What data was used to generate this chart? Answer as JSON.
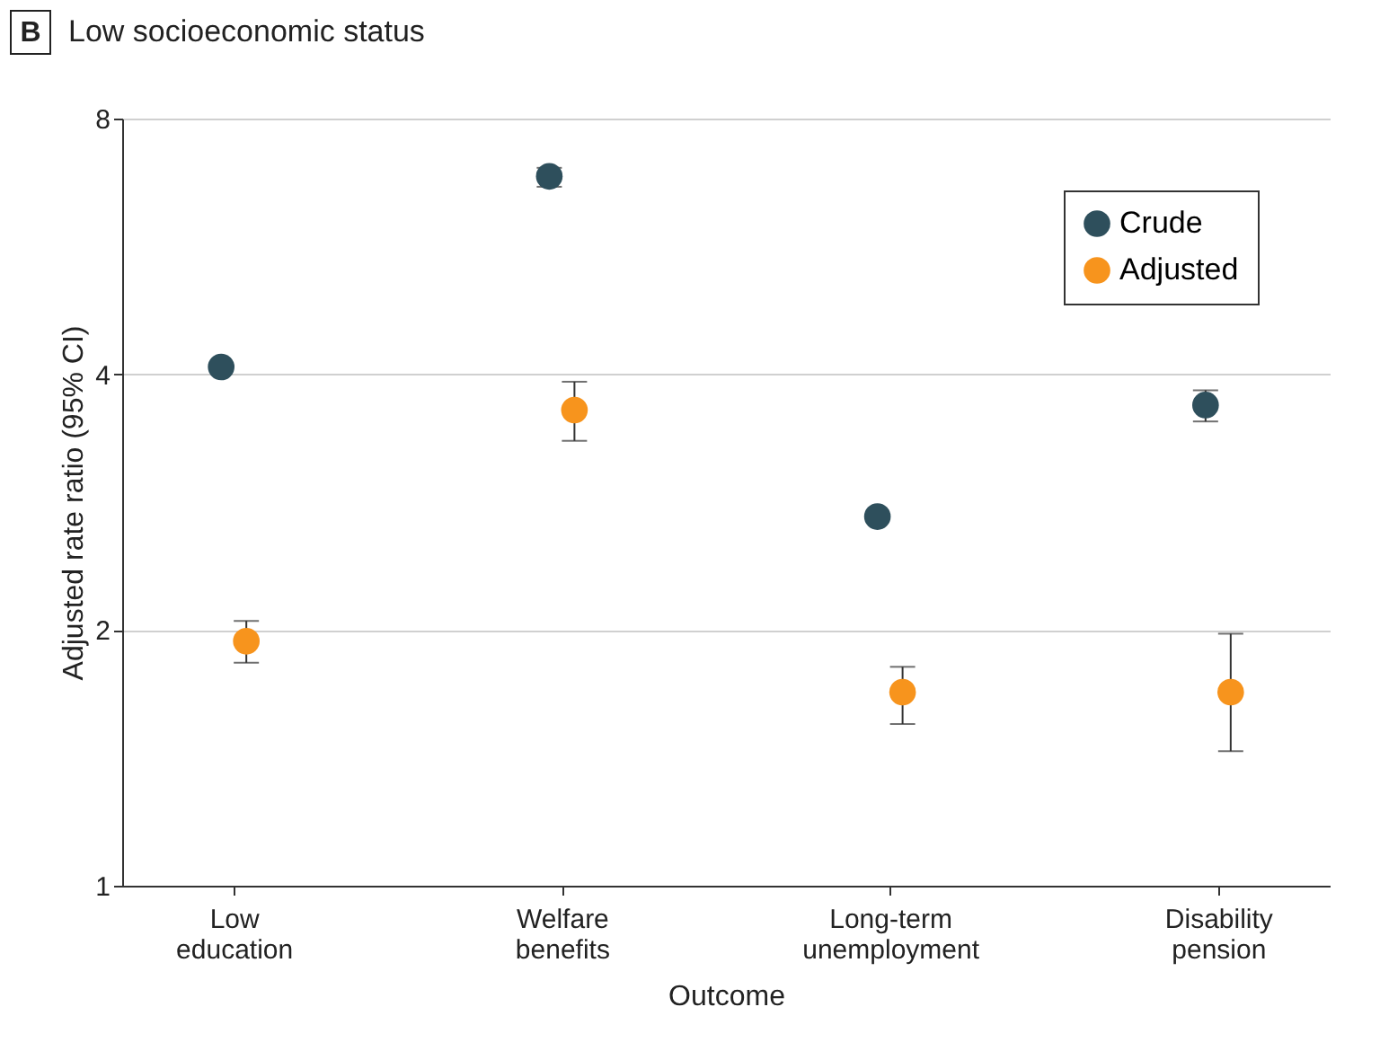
{
  "chart_data": {
    "type": "scatter",
    "title": "Low socioeconomic status",
    "annotations": [
      "B"
    ],
    "xlabel": "Outcome",
    "ylabel": "Adjusted rate ratio (95% CI)",
    "categories": [
      "Low\neducation",
      "Welfare\nbenefits",
      "Long-term\nunemployment",
      "Disability\npension"
    ],
    "series": [
      {
        "name": "Crude",
        "color": "#2e4f5c",
        "values": [
          4.08,
          6.84,
          2.72,
          3.68
        ],
        "errors": [
          null,
          [
            6.65,
            7.0
          ],
          null,
          [
            3.52,
            3.83
          ]
        ]
      },
      {
        "name": "Adjusted",
        "color": "#f7941d",
        "values": [
          1.94,
          3.63,
          1.69,
          1.69
        ],
        "errors": [
          [
            1.83,
            2.05
          ],
          [
            3.34,
            3.92
          ],
          [
            1.55,
            1.81
          ],
          [
            1.44,
            1.98
          ]
        ]
      }
    ],
    "log": "y",
    "ylim": [
      1,
      8
    ],
    "yticks": [
      1,
      2,
      4,
      8
    ],
    "grid": "y",
    "legend": "top right",
    "marker": "circle"
  }
}
